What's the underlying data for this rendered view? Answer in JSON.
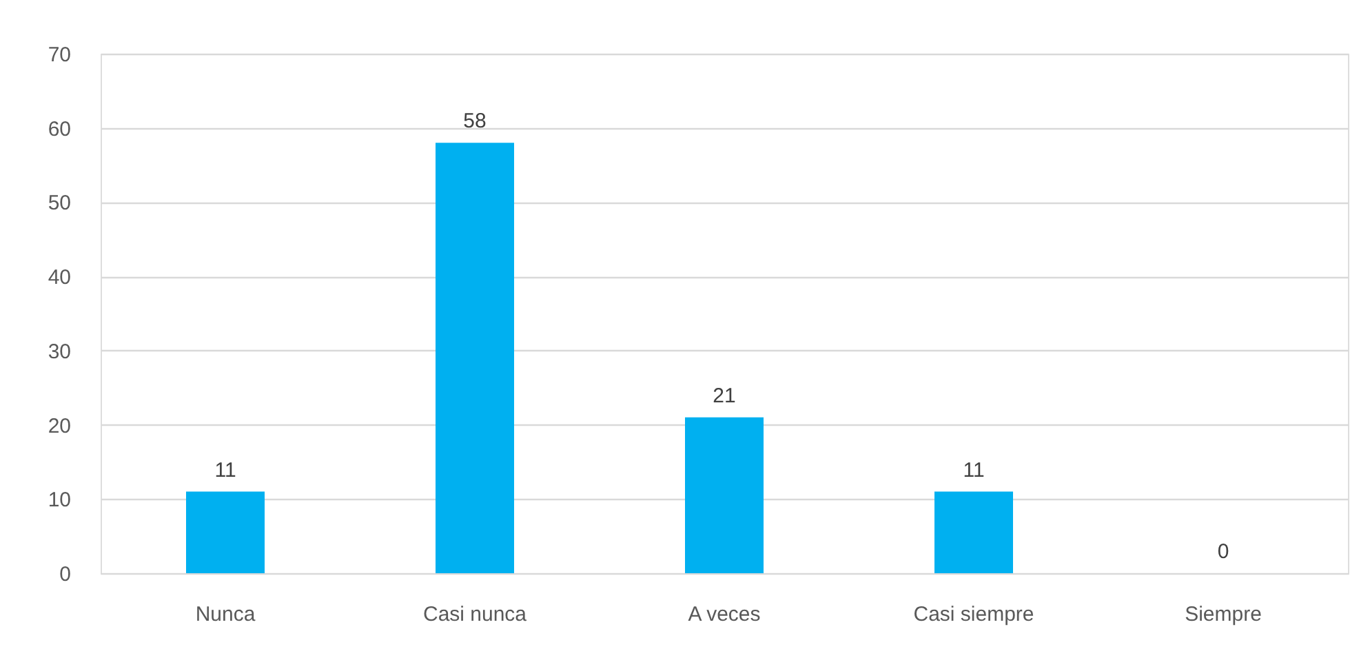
{
  "chart_data": {
    "type": "bar",
    "categories": [
      "Nunca",
      "Casi nunca",
      "A veces",
      "Casi siempre",
      "Siempre"
    ],
    "values": [
      11,
      58,
      21,
      11,
      0
    ],
    "color": "#00b0f0",
    "ylim": [
      0,
      70
    ],
    "yticks": [
      0,
      10,
      20,
      30,
      40,
      50,
      60,
      70
    ],
    "grid": "y",
    "data_labels": true
  }
}
